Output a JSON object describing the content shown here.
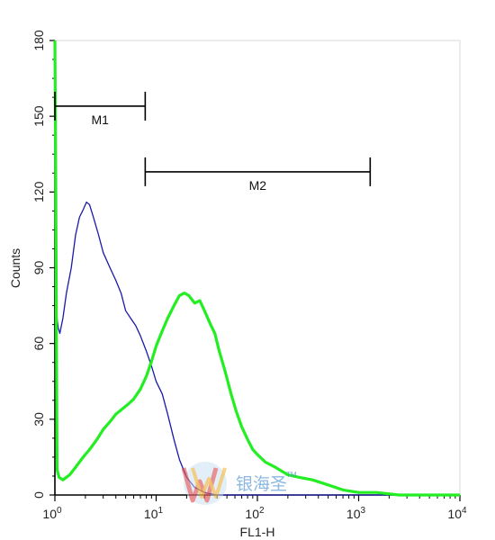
{
  "chart_data": {
    "type": "line",
    "xlabel": "FL1-H",
    "ylabel": "Counts",
    "x_scale": "log",
    "xlim": [
      1,
      10000
    ],
    "ylim": [
      0,
      180
    ],
    "x_ticks": [
      {
        "value": 1,
        "base": "10",
        "exp": "0"
      },
      {
        "value": 10,
        "base": "10",
        "exp": "1"
      },
      {
        "value": 100,
        "base": "10",
        "exp": "2"
      },
      {
        "value": 1000,
        "base": "10",
        "exp": "3"
      },
      {
        "value": 10000,
        "base": "10",
        "exp": "4"
      }
    ],
    "y_ticks": [
      "0",
      "30",
      "60",
      "90",
      "120",
      "150",
      "180"
    ],
    "grid": false,
    "gates": [
      {
        "label": "M1",
        "x_start": 1,
        "x_end": 7.8,
        "y": 154
      },
      {
        "label": "M2",
        "x_start": 7.8,
        "x_end": 1300,
        "y": 128
      }
    ],
    "series": [
      {
        "color": "#1a1aa8",
        "x": [
          1.0,
          1.02,
          1.05,
          1.08,
          1.12,
          1.2,
          1.3,
          1.45,
          1.6,
          1.75,
          1.9,
          2.05,
          2.2,
          2.4,
          2.7,
          3.0,
          3.5,
          4.0,
          4.5,
          5.0,
          5.6,
          6.3,
          7.0,
          8.0,
          9.0,
          10.0,
          11.5,
          13.0,
          15.0,
          17.0,
          20.0,
          24.0,
          30.0,
          40.0,
          60.0,
          100.0,
          200.0,
          500.0,
          10000.0
        ],
        "y": [
          180,
          120,
          70,
          66,
          64,
          70,
          80,
          90,
          103,
          110,
          113,
          116,
          115,
          110,
          103,
          96,
          90,
          85,
          80,
          73,
          70,
          67,
          63,
          57,
          51,
          45,
          40,
          32,
          22,
          14,
          7,
          3,
          1,
          0,
          0,
          0,
          0,
          0,
          0
        ]
      },
      {
        "color": "#22ee22",
        "x": [
          1.0,
          1.02,
          1.05,
          1.1,
          1.2,
          1.4,
          1.6,
          1.9,
          2.2,
          2.6,
          3.0,
          3.5,
          4.0,
          4.6,
          5.3,
          6.0,
          7.0,
          8.0,
          9.0,
          10.0,
          11.5,
          13.0,
          15.0,
          17.0,
          19.0,
          21.0,
          24.0,
          27.0,
          30.0,
          34.0,
          38.0,
          42.0,
          48.0,
          55.0,
          62.0,
          70.0,
          80.0,
          90.0,
          100.0,
          120.0,
          150.0,
          200.0,
          260.0,
          350.0,
          500.0,
          700.0,
          1000.0,
          1500.0,
          2500.0,
          5000.0,
          10000.0
        ],
        "y": [
          180,
          120,
          10,
          7,
          6,
          8,
          11,
          15,
          18,
          22,
          26,
          29,
          32,
          34,
          36,
          38,
          42,
          47,
          53,
          59,
          65,
          70,
          75,
          79,
          80,
          79,
          76,
          77,
          73,
          68,
          64,
          57,
          49,
          40,
          33,
          27,
          22,
          18,
          16,
          13,
          11,
          8,
          7,
          6,
          4,
          2,
          1,
          1,
          0,
          0,
          0
        ]
      }
    ]
  },
  "watermark": {
    "text": "银海圣",
    "tm": "TM"
  }
}
